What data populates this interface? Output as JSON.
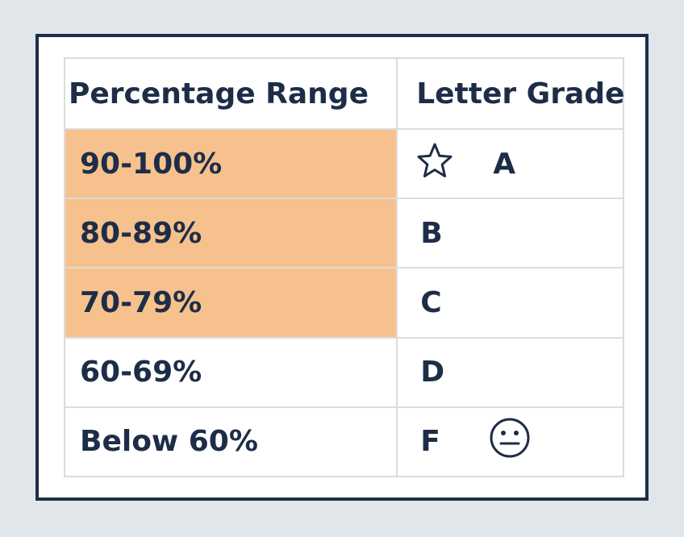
{
  "table": {
    "headers": {
      "range": "Percentage Range",
      "grade": "Letter Grade"
    },
    "rows": [
      {
        "range": "90-100%",
        "grade": "A",
        "highlighted": true,
        "icon": "star-outline-icon"
      },
      {
        "range": "80-89%",
        "grade": "B",
        "highlighted": true
      },
      {
        "range": "70-79%",
        "grade": "C",
        "highlighted": true
      },
      {
        "range": "60-69%",
        "grade": "D",
        "highlighted": false
      },
      {
        "range": "Below 60%",
        "grade": "F",
        "highlighted": false,
        "icon": "neutral-face-icon"
      }
    ]
  },
  "colors": {
    "background": "#e1e6ea",
    "frame_border": "#1e2d47",
    "text": "#1e2d47",
    "highlight": "#f6c18c",
    "grid": "#dcdcdc"
  }
}
